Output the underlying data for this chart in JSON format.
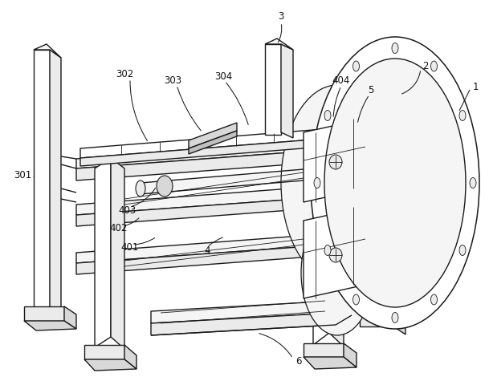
{
  "bg_color": "#ffffff",
  "lc": "#1a1a1a",
  "lw_main": 1.0,
  "lw_thin": 0.6,
  "fill_white": "#ffffff",
  "fill_vlight": "#f5f5f5",
  "fill_light": "#ebebeb",
  "fill_mid": "#d8d8d8",
  "fill_dark": "#c0c0c0",
  "figsize": [
    6.09,
    4.7
  ],
  "dpi": 100
}
